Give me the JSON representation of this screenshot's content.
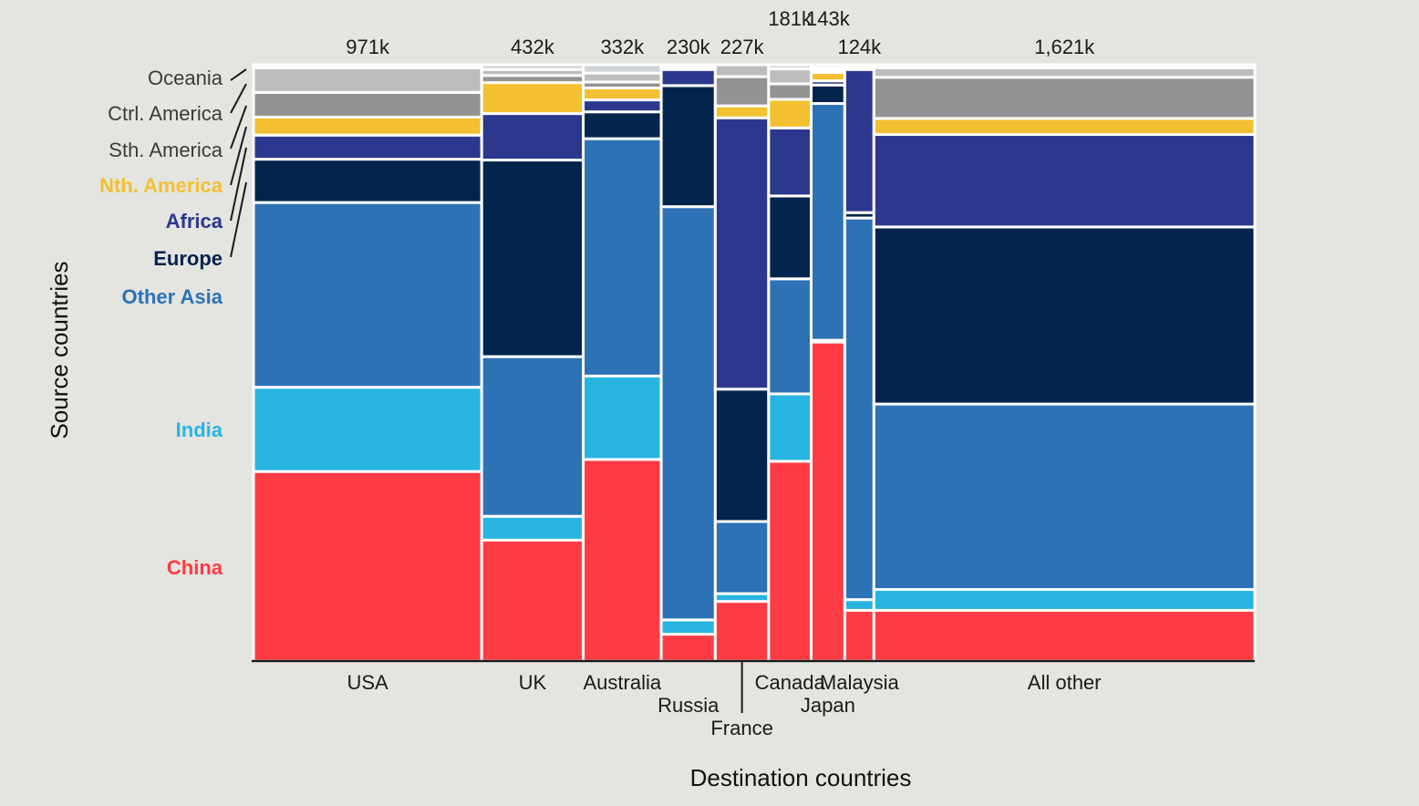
{
  "chart_data": {
    "type": "mosaic",
    "xlabel": "Destination countries",
    "ylabel": "Source countries",
    "destinations": [
      {
        "name": "USA",
        "total_label": "971k",
        "total": 971
      },
      {
        "name": "UK",
        "total_label": "432k",
        "total": 432
      },
      {
        "name": "Australia",
        "total_label": "332k",
        "total": 332
      },
      {
        "name": "Russia",
        "total_label": "230k",
        "total": 230
      },
      {
        "name": "France",
        "total_label": "227k",
        "total": 227
      },
      {
        "name": "Canada",
        "total_label": "181k",
        "total": 181
      },
      {
        "name": "Japan",
        "total_label": "143k",
        "total": 143
      },
      {
        "name": "Malaysia",
        "total_label": "124k",
        "total": 124
      },
      {
        "name": "All other",
        "total_label": "1,621k",
        "total": 1621
      }
    ],
    "sources": [
      {
        "name": "China",
        "color": "#fe3a44"
      },
      {
        "name": "India",
        "color": "#28b4e1"
      },
      {
        "name": "Other Asia",
        "color": "#2e72b6"
      },
      {
        "name": "Europe",
        "color": "#02244d"
      },
      {
        "name": "Africa",
        "color": "#2c378e"
      },
      {
        "name": "Nth. America",
        "color": "#f3c031"
      },
      {
        "name": "Sth. America",
        "color": "#939393"
      },
      {
        "name": "Ctrl. America",
        "color": "#bdbdbd"
      },
      {
        "name": "Oceania",
        "color": "#d0d4d8"
      }
    ],
    "shares_note": "Fraction of each destination's total by source, listed bottom-to-top in source order",
    "shares": {
      "USA": [
        0.315,
        0.14,
        0.307,
        0.072,
        0.04,
        0.03,
        0.041,
        0.041,
        0.005
      ],
      "UK": [
        0.203,
        0.04,
        0.268,
        0.33,
        0.078,
        0.052,
        0.012,
        0.01,
        0.008
      ],
      "Australia": [
        0.338,
        0.14,
        0.398,
        0.045,
        0.02,
        0.02,
        0.01,
        0.015,
        0.014
      ],
      "Russia": [
        0.045,
        0.024,
        0.693,
        0.203,
        0.027,
        0.003,
        0.002,
        0.001,
        0.002
      ],
      "France": [
        0.1,
        0.013,
        0.121,
        0.222,
        0.455,
        0.02,
        0.049,
        0.02,
        0.0
      ],
      "Canada": [
        0.335,
        0.113,
        0.193,
        0.139,
        0.114,
        0.048,
        0.026,
        0.025,
        0.007
      ],
      "Japan": [
        0.535,
        0.003,
        0.397,
        0.031,
        0.007,
        0.014,
        0.004,
        0.004,
        0.005
      ],
      "Malaysia": [
        0.085,
        0.018,
        0.64,
        0.009,
        0.24,
        0.003,
        0.002,
        0.001,
        0.002
      ],
      "All other": [
        0.085,
        0.035,
        0.311,
        0.297,
        0.155,
        0.027,
        0.069,
        0.016,
        0.005
      ]
    }
  }
}
